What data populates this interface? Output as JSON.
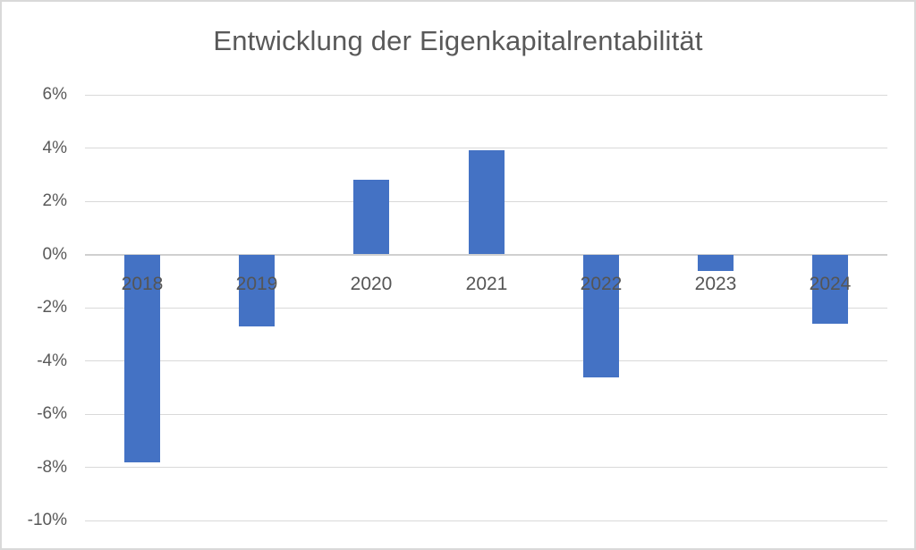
{
  "colors": {
    "bar_fill": "#4472C4",
    "text": "#595959",
    "gridline": "#D9D9D9",
    "zero_axis": "#D0D0D0",
    "chart_border": "#D9D9D9",
    "background": "#FFFFFF"
  },
  "chart_data": {
    "type": "bar",
    "title": "Entwicklung der Eigenkapitalrentabilität",
    "categories": [
      "2018",
      "2019",
      "2020",
      "2021",
      "2022",
      "2023",
      "2024"
    ],
    "values": [
      -7.8,
      -2.7,
      2.8,
      3.9,
      -4.6,
      -0.6,
      -2.6
    ],
    "value_unit": "%",
    "xlabel": "",
    "ylabel": "",
    "ylim": [
      -10,
      6
    ],
    "ytick_step": 2,
    "ytick_labels": [
      "6%",
      "4%",
      "2%",
      "0%",
      "-2%",
      "-4%",
      "-6%",
      "-8%",
      "-10%"
    ],
    "grid": "horizontal-only",
    "legend": "none",
    "series_count": 1
  }
}
